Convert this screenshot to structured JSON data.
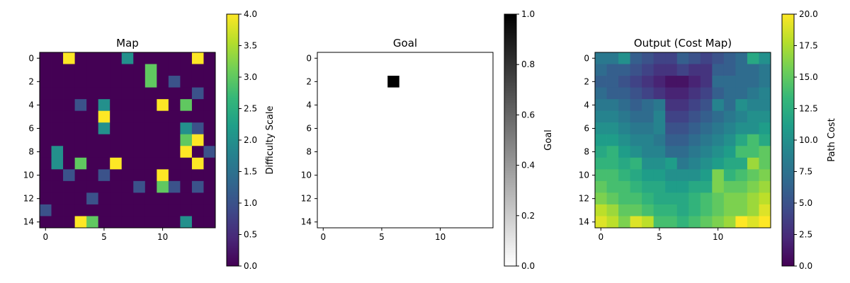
{
  "chart_data": [
    {
      "type": "heatmap",
      "title": "Map",
      "colormap": "viridis",
      "colorbar_label": "Difficulty Scale",
      "value_range": [
        0,
        4
      ],
      "colorbar_ticks": [
        "0.0",
        "0.5",
        "1.0",
        "1.5",
        "2.0",
        "2.5",
        "3.0",
        "3.5",
        "4.0"
      ],
      "xticks": [
        "0",
        "5",
        "10"
      ],
      "yticks": [
        "0",
        "2",
        "4",
        "6",
        "8",
        "10",
        "12",
        "14"
      ],
      "grid": false,
      "values": [
        [
          0,
          0,
          4,
          0,
          0,
          0,
          0,
          2,
          0,
          0,
          0,
          0,
          0,
          4,
          0
        ],
        [
          0,
          0,
          0,
          0,
          0,
          0,
          0,
          0,
          0,
          3,
          0,
          0,
          0,
          0,
          0
        ],
        [
          0,
          0,
          0,
          0,
          0,
          0,
          0,
          0,
          0,
          3,
          0,
          1,
          0,
          0,
          0
        ],
        [
          0,
          0,
          0,
          0,
          0,
          0,
          0,
          0,
          0,
          0,
          0,
          0,
          0,
          1,
          0
        ],
        [
          0,
          0,
          0,
          1,
          0,
          2,
          0,
          0,
          0,
          0,
          4,
          0,
          3,
          0,
          0
        ],
        [
          0,
          0,
          0,
          0,
          0,
          4,
          0,
          0,
          0,
          0,
          0,
          0,
          0,
          0,
          0
        ],
        [
          0,
          0,
          0,
          0,
          0,
          2,
          0,
          0,
          0,
          0,
          0,
          0,
          2,
          1,
          0
        ],
        [
          0,
          0,
          0,
          0,
          0,
          0,
          0,
          0,
          0,
          0,
          0,
          0,
          3,
          4,
          0
        ],
        [
          0,
          2,
          0,
          0,
          0,
          0,
          0,
          0,
          0,
          0,
          0,
          0,
          4,
          0,
          1
        ],
        [
          0,
          2,
          0,
          3,
          0,
          0,
          4,
          0,
          0,
          0,
          0,
          0,
          0,
          4,
          0
        ],
        [
          0,
          0,
          1,
          0,
          0,
          1,
          0,
          0,
          0,
          0,
          4,
          0,
          0,
          0,
          0
        ],
        [
          0,
          0,
          0,
          0,
          0,
          0,
          0,
          0,
          1,
          0,
          3,
          1,
          0,
          1,
          0
        ],
        [
          0,
          0,
          0,
          0,
          1,
          0,
          0,
          0,
          0,
          0,
          0,
          0,
          0,
          0,
          0
        ],
        [
          1,
          0,
          0,
          0,
          0,
          0,
          0,
          0,
          0,
          0,
          0,
          0,
          0,
          0,
          0
        ],
        [
          0,
          0,
          0,
          4,
          3,
          0,
          0,
          0,
          0,
          0,
          0,
          0,
          2,
          0,
          0
        ]
      ]
    },
    {
      "type": "heatmap",
      "title": "Goal",
      "colormap": "gray_r",
      "colorbar_label": "Goal",
      "value_range": [
        0,
        1
      ],
      "colorbar_ticks": [
        "0.0",
        "0.2",
        "0.4",
        "0.6",
        "0.8",
        "1.0"
      ],
      "xticks": [
        "0",
        "5",
        "10"
      ],
      "yticks": [
        "0",
        "2",
        "4",
        "6",
        "8",
        "10",
        "12",
        "14"
      ],
      "grid": false,
      "goal_cell": {
        "row": 2,
        "col": 6,
        "value": 1
      },
      "background_value": 0
    },
    {
      "type": "heatmap",
      "title": "Output (Cost Map)",
      "colormap": "viridis",
      "colorbar_label": "Path Cost",
      "value_range": [
        0,
        20
      ],
      "colorbar_ticks": [
        "0.0",
        "2.5",
        "5.0",
        "7.5",
        "10.0",
        "12.5",
        "15.0",
        "17.5",
        "20.0"
      ],
      "xticks": [
        "0",
        "5",
        "10"
      ],
      "yticks": [
        "0",
        "2",
        "4",
        "6",
        "8",
        "10",
        "12",
        "14"
      ],
      "grid": false,
      "values": [
        [
          8,
          8,
          10,
          6,
          5,
          4,
          4,
          6,
          5,
          4,
          5,
          6,
          7,
          12,
          10
        ],
        [
          7,
          6,
          6,
          5,
          4,
          3,
          3,
          4,
          3,
          3,
          6,
          6,
          7,
          7,
          8
        ],
        [
          6,
          6,
          5,
          4,
          3,
          2,
          1,
          1,
          2,
          3,
          7,
          7,
          7,
          7,
          8
        ],
        [
          7,
          6,
          6,
          5,
          4,
          3,
          2,
          2,
          3,
          4,
          6,
          7,
          7,
          8,
          9
        ],
        [
          8,
          8,
          7,
          6,
          7,
          8,
          3,
          3,
          4,
          5,
          9,
          7,
          10,
          9,
          9
        ],
        [
          9,
          9,
          8,
          7,
          7,
          9,
          4,
          4,
          5,
          6,
          7,
          8,
          9,
          10,
          10
        ],
        [
          10,
          10,
          9,
          8,
          8,
          9,
          5,
          5,
          6,
          7,
          8,
          9,
          10,
          10,
          11
        ],
        [
          11,
          11,
          10,
          9,
          9,
          8,
          6,
          6,
          7,
          8,
          9,
          10,
          12,
          14,
          12
        ],
        [
          12,
          13,
          11,
          10,
          9,
          9,
          7,
          7,
          8,
          9,
          10,
          11,
          14,
          14,
          15
        ],
        [
          13,
          13,
          12,
          13,
          10,
          10,
          11,
          8,
          9,
          10,
          11,
          12,
          12,
          17,
          15
        ],
        [
          14,
          14,
          13,
          12,
          11,
          11,
          10,
          10,
          10,
          11,
          16,
          13,
          14,
          15,
          16
        ],
        [
          15,
          14,
          14,
          13,
          12,
          12,
          11,
          11,
          12,
          12,
          16,
          15,
          15,
          16,
          17
        ],
        [
          16,
          15,
          14,
          14,
          13,
          12,
          12,
          12,
          13,
          14,
          15,
          16,
          16,
          17,
          18
        ],
        [
          18,
          17,
          15,
          15,
          14,
          13,
          13,
          12,
          13,
          14,
          15,
          16,
          16,
          17,
          19
        ],
        [
          19,
          18,
          16,
          19,
          18,
          14,
          14,
          13,
          14,
          15,
          16,
          17,
          20,
          19,
          20
        ]
      ]
    }
  ]
}
